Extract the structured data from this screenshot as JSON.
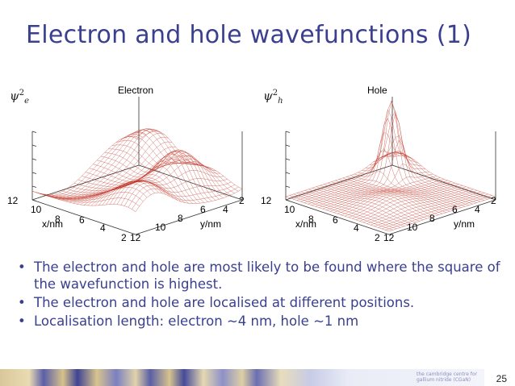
{
  "slide": {
    "title": "Electron and hole wavefunctions (1)",
    "page_number": "25",
    "footer_logo_text": "the cambridge centre for gallium nitride (CGaN)"
  },
  "plots": [
    {
      "id": "electron",
      "title": "Electron",
      "z_label": "ψ",
      "z_label_sup": "2",
      "z_label_sub": "e",
      "x_axis": {
        "label": "x/nm",
        "ticks": [
          "12",
          "10",
          "8",
          "6",
          "4",
          "2"
        ]
      },
      "y_axis": {
        "label": "y/nm",
        "ticks": [
          "12",
          "10",
          "8",
          "6",
          "4",
          "2"
        ]
      }
    },
    {
      "id": "hole",
      "title": "Hole",
      "z_label": "ψ",
      "z_label_sup": "2",
      "z_label_sub": "h",
      "x_axis": {
        "label": "x/nm",
        "ticks": [
          "12",
          "10",
          "8",
          "6",
          "4",
          "2"
        ]
      },
      "y_axis": {
        "label": "y/nm",
        "ticks": [
          "12",
          "10",
          "8",
          "6",
          "4",
          "2"
        ]
      }
    }
  ],
  "bullets": [
    "The electron and hole are most likely to be found where the square of the wavefunction is highest.",
    "The electron and hole are localised at different positions.",
    "Localisation length: electron ~4 nm, hole ~1 nm"
  ],
  "colors": {
    "title": "#3a3f8f",
    "bullet_text": "#3a3f8f",
    "mesh": "#c0392b"
  }
}
